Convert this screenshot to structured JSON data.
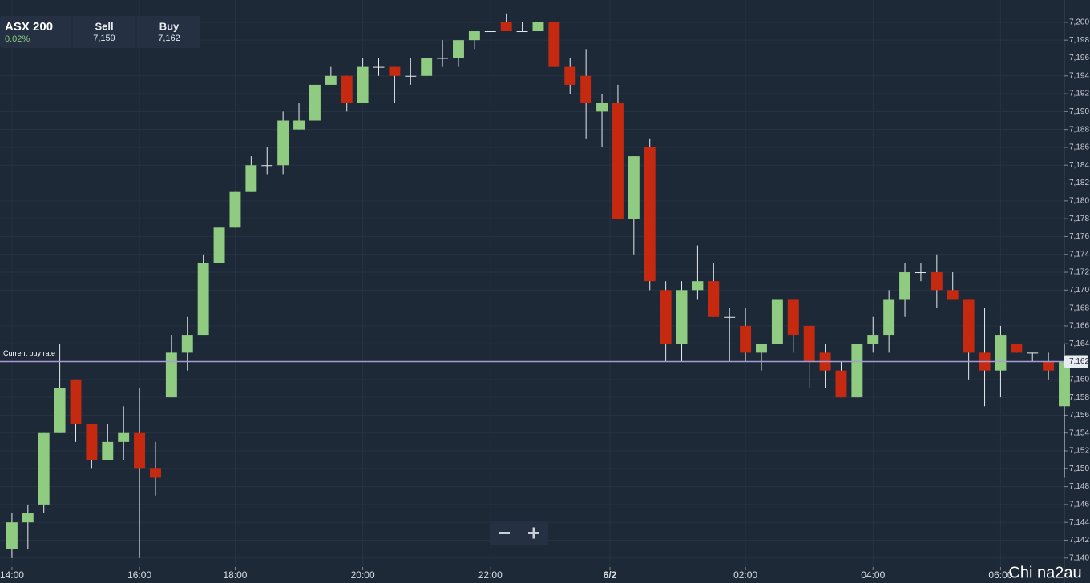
{
  "header": {
    "instrument": "ASX 200",
    "change": "0.02%",
    "sell_label": "Sell",
    "sell": "7,159",
    "buy_label": "Buy",
    "buy": "7,162"
  },
  "watermark": "Chi na2au",
  "chart_data": {
    "type": "candlestick",
    "up_color": "#8fcb80",
    "down_color": "#c52a10",
    "grid": true,
    "categories": [
      null,
      null,
      null,
      null,
      null,
      null,
      null,
      null,
      null,
      null,
      null,
      null,
      null,
      null,
      null,
      null,
      null,
      null,
      null,
      null,
      null,
      null,
      null,
      null,
      null,
      null,
      null,
      null,
      null,
      null,
      null,
      null,
      null,
      null,
      null,
      null,
      null,
      null,
      null,
      null,
      null,
      null,
      null,
      null,
      null,
      null,
      null,
      null,
      null,
      null,
      null,
      null,
      null,
      null,
      null,
      null,
      null,
      null,
      null,
      null,
      null,
      null,
      null,
      null,
      null,
      null,
      null
    ],
    "open": [
      7141,
      7144,
      7146,
      7154,
      7160,
      7155,
      7151,
      7153,
      7154,
      7150,
      7158,
      7163,
      7165,
      7173,
      7177,
      7181,
      7184,
      7184,
      7188,
      7189,
      7193,
      7194,
      7191,
      7195,
      7195,
      7194,
      7194,
      7196,
      7196,
      7198,
      7199,
      7200,
      7199,
      7199,
      7200,
      7195,
      7194,
      7190,
      7191,
      7178,
      7186,
      7170,
      7164,
      7170,
      7171,
      7167,
      7166,
      7163,
      7164,
      7169,
      7166,
      7163,
      7161,
      7158,
      7164,
      7165,
      7169,
      7172,
      7172,
      7170,
      7169,
      7163,
      7161,
      7164,
      7163,
      7162,
      7157
    ],
    "high": [
      7145,
      7146,
      7154,
      7164,
      7160,
      7155,
      7155,
      7157,
      7159,
      7153,
      7165,
      7167,
      7174,
      7177,
      7181,
      7185,
      7186,
      7190,
      7191,
      7193,
      7195,
      7194,
      7196,
      7196,
      7195,
      7196,
      7196,
      7198,
      7198,
      7199,
      7199,
      7201,
      7200,
      7200,
      7200,
      7196,
      7197,
      7192,
      7193,
      7185,
      7187,
      7171,
      7171,
      7175,
      7173,
      7168,
      7168,
      7164,
      7169,
      7169,
      7166,
      7164,
      7162,
      7164,
      7167,
      7170,
      7173,
      7173,
      7174,
      7172,
      7169,
      7168,
      7166,
      7164,
      7163,
      7163,
      7164
    ],
    "low": [
      7140,
      7141,
      7145,
      7154,
      7153,
      7150,
      7151,
      7151,
      7140,
      7147,
      7158,
      7161,
      7165,
      7173,
      7177,
      7181,
      7183,
      7183,
      7188,
      7189,
      7193,
      7190,
      7191,
      7194,
      7191,
      7193,
      7194,
      7195,
      7195,
      7197,
      7199,
      7199,
      7199,
      7199,
      7195,
      7192,
      7187,
      7186,
      7178,
      7174,
      7170,
      7162,
      7162,
      7169,
      7167,
      7162,
      7162,
      7161,
      7164,
      7163,
      7159,
      7159,
      7158,
      7158,
      7163,
      7163,
      7167,
      7171,
      7168,
      7169,
      7160,
      7157,
      7158,
      7163,
      7162,
      7160,
      7149
    ],
    "close": [
      7144,
      7145,
      7154,
      7159,
      7155,
      7151,
      7153,
      7154,
      7150,
      7149,
      7163,
      7165,
      7173,
      7177,
      7181,
      7184,
      7184,
      7189,
      7189,
      7193,
      7194,
      7191,
      7195,
      7195,
      7194,
      7194,
      7196,
      7196,
      7198,
      7199,
      7199,
      7199,
      7199,
      7200,
      7195,
      7193,
      7191,
      7191,
      7178,
      7185,
      7171,
      7164,
      7170,
      7171,
      7167,
      7167,
      7163,
      7164,
      7169,
      7165,
      7162,
      7161,
      7158,
      7164,
      7165,
      7169,
      7172,
      7172,
      7170,
      7169,
      7163,
      7161,
      7165,
      7163,
      7163,
      7161,
      7162
    ],
    "xlim": [
      -0.75,
      66
    ],
    "xticks": [
      {
        "value": 0,
        "label": "14:00"
      },
      {
        "value": 8,
        "label": "16:00"
      },
      {
        "value": 14,
        "label": "18:00"
      },
      {
        "value": 22,
        "label": "20:00"
      },
      {
        "value": 30,
        "label": "22:00"
      },
      {
        "value": 37.5,
        "label": "6/2"
      },
      {
        "value": 46,
        "label": "02:00"
      },
      {
        "value": 54,
        "label": "04:00"
      },
      {
        "value": 62,
        "label": "06:00"
      }
    ],
    "ylim": [
      7137.2,
      7202.5
    ],
    "yticks": [
      {
        "value": 7140,
        "label": "7,140"
      },
      {
        "value": 7142,
        "label": "7,142"
      },
      {
        "value": 7144,
        "label": "7,144"
      },
      {
        "value": 7146,
        "label": "7,146"
      },
      {
        "value": 7148,
        "label": "7,148"
      },
      {
        "value": 7150,
        "label": "7,150"
      },
      {
        "value": 7152,
        "label": "7,152"
      },
      {
        "value": 7154,
        "label": "7,154"
      },
      {
        "value": 7156,
        "label": "7,156"
      },
      {
        "value": 7158,
        "label": "7,158"
      },
      {
        "value": 7160,
        "label": "7,160"
      },
      {
        "value": 7162,
        "label": "7,162"
      },
      {
        "value": 7164,
        "label": "7,164"
      },
      {
        "value": 7166,
        "label": "7,166"
      },
      {
        "value": 7168,
        "label": "7,168"
      },
      {
        "value": 7170,
        "label": "7,170"
      },
      {
        "value": 7172,
        "label": "7,172"
      },
      {
        "value": 7174,
        "label": "7,174"
      },
      {
        "value": 7176,
        "label": "7,176"
      },
      {
        "value": 7178,
        "label": "7,178"
      },
      {
        "value": 7180,
        "label": "7,180"
      },
      {
        "value": 7182,
        "label": "7,182"
      },
      {
        "value": 7184,
        "label": "7,184"
      },
      {
        "value": 7186,
        "label": "7,186"
      },
      {
        "value": 7188,
        "label": "7,188"
      },
      {
        "value": 7190,
        "label": "7,190"
      },
      {
        "value": 7192,
        "label": "7,192"
      },
      {
        "value": 7194,
        "label": "7,194"
      },
      {
        "value": 7196,
        "label": "7,196"
      },
      {
        "value": 7198,
        "label": "7,198"
      },
      {
        "value": 7200,
        "label": "7,200"
      }
    ],
    "buy_rate": {
      "label": "Current buy rate",
      "value": 7162,
      "value_label": "7,162",
      "color": "#a99bd8"
    }
  }
}
